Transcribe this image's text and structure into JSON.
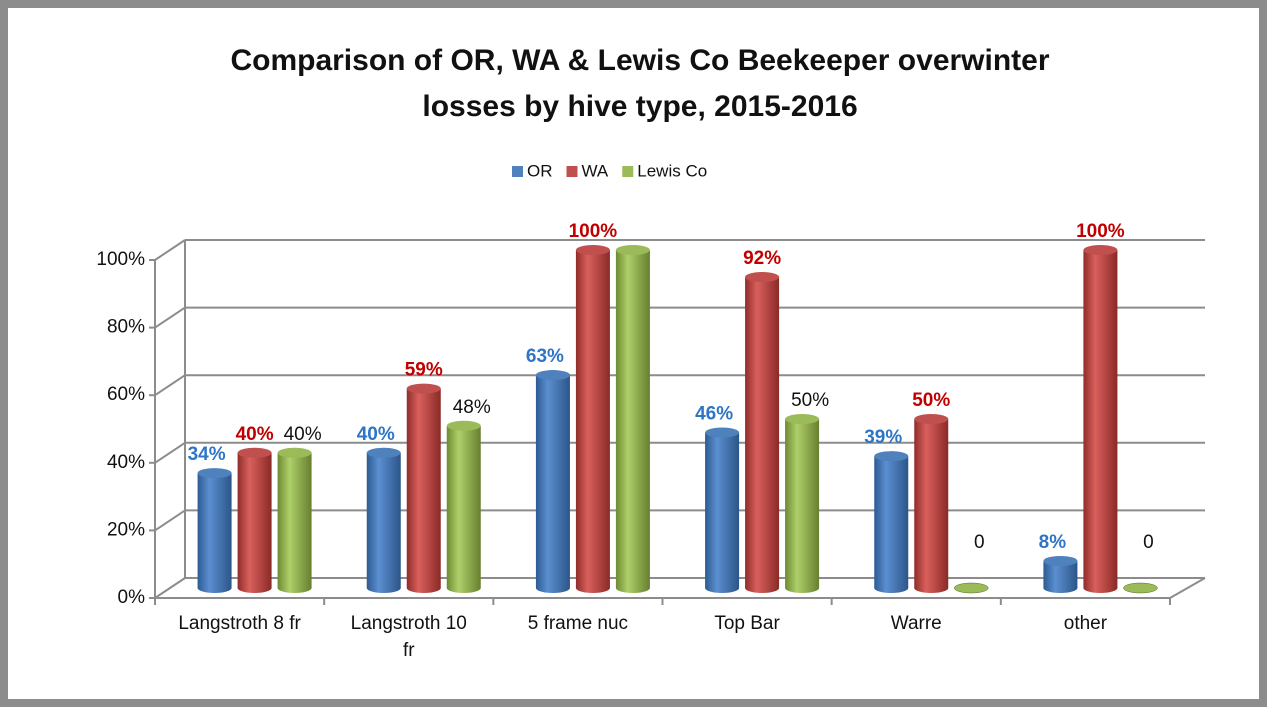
{
  "chart_data": {
    "type": "bar3d",
    "title": [
      "Comparison of OR, WA & Lewis Co Beekeeper overwinter",
      "losses by hive type, 2015-2016"
    ],
    "categories": [
      "Langstroth 8 fr",
      "Langstroth 10 fr",
      "5 frame nuc",
      "Top Bar",
      "Warre",
      "other"
    ],
    "series": [
      {
        "name": "OR",
        "color": "#4f81bd",
        "label_color": "#2e75c6",
        "label_bold": true,
        "values": [
          34,
          40,
          63,
          46,
          39,
          8
        ],
        "value_labels": [
          "34%",
          "40%",
          "63%",
          "46%",
          "39%",
          "8%"
        ]
      },
      {
        "name": "WA",
        "color": "#c0504d",
        "label_color": "#c00000",
        "label_bold": true,
        "values": [
          40,
          59,
          100,
          92,
          50,
          100
        ],
        "value_labels": [
          "40%",
          "59%",
          "100%",
          "92%",
          "50%",
          "100%"
        ]
      },
      {
        "name": "Lewis Co",
        "color": "#9bbb59",
        "label_color": "#111111",
        "label_bold": false,
        "values": [
          40,
          48,
          100,
          50,
          0,
          0
        ],
        "value_labels": [
          "40%",
          "48%",
          null,
          "50%",
          "0",
          "0"
        ]
      }
    ],
    "ylim": [
      0,
      100
    ],
    "yticks": [
      {
        "value": 0,
        "label": "0%"
      },
      {
        "value": 20,
        "label": "20%"
      },
      {
        "value": 40,
        "label": "40%"
      },
      {
        "value": 60,
        "label": "60%"
      },
      {
        "value": 80,
        "label": "80%"
      },
      {
        "value": 100,
        "label": "100%"
      }
    ],
    "grid": true,
    "legend": "top"
  }
}
